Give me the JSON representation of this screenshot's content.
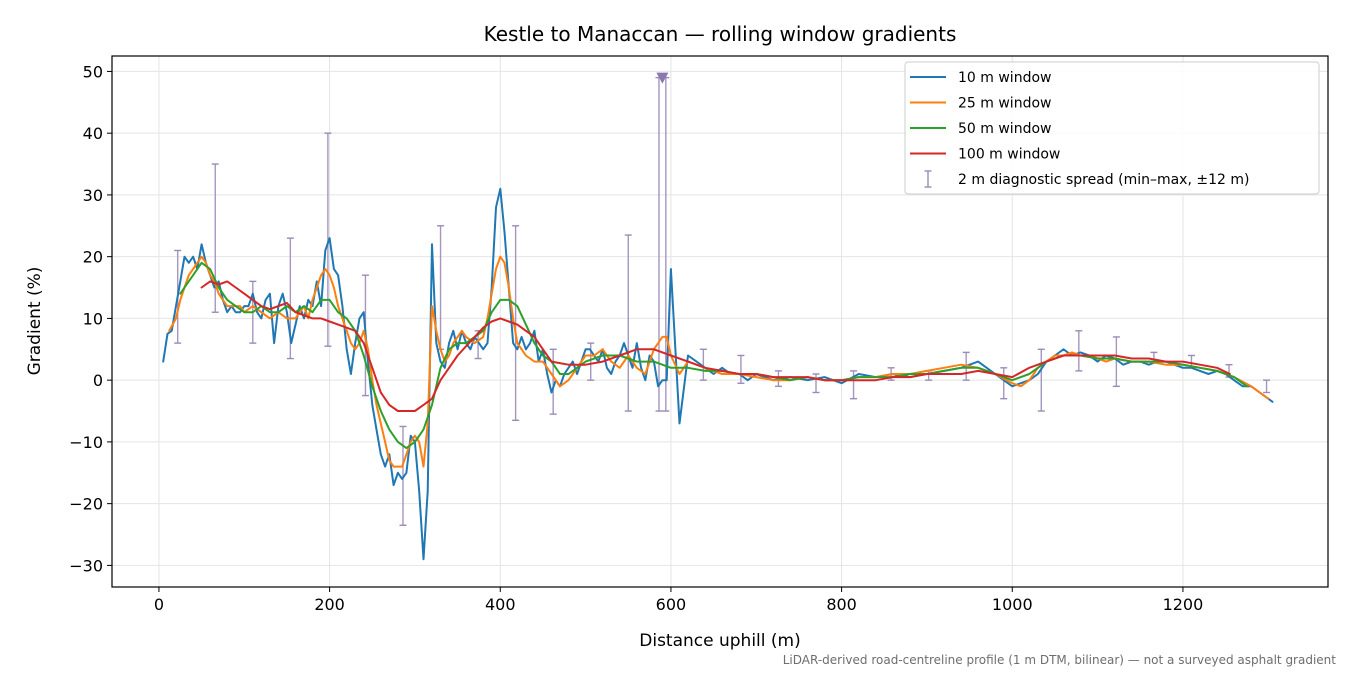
{
  "chart_data": {
    "type": "line",
    "title": "Kestle to Manaccan — rolling window gradients",
    "xlabel": "Distance uphill (m)",
    "ylabel": "Gradient (%)",
    "footnote": "LiDAR-derived road-centreline profile (1 m DTM, bilinear) — not a surveyed asphalt gradient",
    "xlim": [
      -55,
      1370
    ],
    "ylim": [
      -33.5,
      52.5
    ],
    "xticks": [
      0,
      200,
      400,
      600,
      800,
      1000,
      1200
    ],
    "yticks": [
      -30,
      -20,
      -10,
      0,
      10,
      20,
      30,
      40,
      50
    ],
    "grid": true,
    "legend": {
      "position": "top-right"
    },
    "series": [
      {
        "name": "10 m window",
        "color": "#1f77b4",
        "x": [
          5,
          10,
          15,
          20,
          25,
          30,
          35,
          40,
          45,
          50,
          55,
          60,
          65,
          70,
          75,
          80,
          85,
          90,
          95,
          100,
          105,
          110,
          115,
          120,
          125,
          130,
          135,
          140,
          145,
          150,
          155,
          160,
          165,
          170,
          175,
          180,
          185,
          190,
          195,
          200,
          205,
          210,
          215,
          220,
          225,
          230,
          235,
          240,
          245,
          250,
          255,
          260,
          265,
          270,
          275,
          280,
          285,
          290,
          295,
          300,
          305,
          310,
          315,
          320,
          325,
          330,
          335,
          340,
          345,
          350,
          355,
          360,
          365,
          370,
          375,
          380,
          385,
          390,
          395,
          400,
          405,
          410,
          415,
          420,
          425,
          430,
          435,
          440,
          445,
          450,
          455,
          460,
          465,
          470,
          475,
          480,
          485,
          490,
          495,
          500,
          505,
          510,
          515,
          520,
          525,
          530,
          535,
          540,
          545,
          550,
          555,
          560,
          565,
          570,
          575,
          580,
          585,
          590,
          595,
          600,
          610,
          620,
          630,
          640,
          650,
          660,
          670,
          680,
          690,
          700,
          720,
          740,
          760,
          780,
          800,
          820,
          840,
          860,
          880,
          900,
          920,
          940,
          960,
          980,
          1000,
          1010,
          1020,
          1030,
          1040,
          1050,
          1060,
          1070,
          1080,
          1090,
          1100,
          1110,
          1120,
          1130,
          1140,
          1150,
          1160,
          1170,
          1180,
          1190,
          1200,
          1210,
          1220,
          1230,
          1240,
          1250,
          1260,
          1270,
          1280,
          1290,
          1300,
          1305
        ],
        "y": [
          3,
          7.5,
          8,
          12,
          16,
          20,
          19,
          20,
          18,
          22,
          19,
          17,
          15,
          16,
          13,
          11,
          12,
          11,
          11,
          12,
          12,
          14,
          11,
          10,
          13,
          14,
          6,
          12,
          14,
          11,
          6,
          9,
          12,
          10,
          13,
          12,
          16,
          12,
          21,
          23,
          18,
          17,
          12,
          5,
          1,
          6,
          10,
          11,
          3,
          -4,
          -8,
          -12,
          -14,
          -12,
          -17,
          -15,
          -16,
          -15,
          -9,
          -10,
          -18,
          -29,
          -18,
          22,
          6,
          3,
          2,
          6,
          8,
          5,
          8,
          6,
          5,
          7,
          6,
          5,
          6,
          15,
          28,
          31,
          24,
          15,
          6,
          5,
          7,
          5,
          6,
          8,
          3,
          5,
          1,
          -2,
          0,
          -1,
          1,
          2,
          3,
          1,
          3,
          5,
          5,
          4,
          3,
          5,
          2,
          1,
          3,
          4,
          6,
          4,
          2,
          6,
          2,
          0,
          4,
          3,
          -1,
          0,
          0,
          18,
          -7,
          4,
          3,
          2,
          1,
          2,
          1,
          1,
          0,
          1,
          0,
          0.5,
          0,
          0.5,
          -0.5,
          1,
          0.5,
          1,
          0.5,
          1,
          1.5,
          2,
          3,
          1,
          -1,
          -0.5,
          0,
          1,
          3,
          4,
          5,
          4,
          4.5,
          4,
          3,
          4,
          3.5,
          2.5,
          3,
          3,
          2.5,
          3,
          3,
          2.5,
          2,
          2,
          1.5,
          1,
          1.5,
          1,
          0,
          -1,
          -1,
          -2,
          -3,
          -3.5
        ]
      },
      {
        "name": "25 m window",
        "color": "#ff7f0e",
        "x": [
          12,
          20,
          25,
          30,
          35,
          40,
          45,
          50,
          55,
          60,
          65,
          70,
          75,
          80,
          85,
          90,
          95,
          100,
          110,
          120,
          130,
          140,
          150,
          160,
          170,
          175,
          180,
          185,
          190,
          195,
          200,
          205,
          210,
          215,
          220,
          225,
          230,
          235,
          240,
          245,
          250,
          255,
          260,
          265,
          270,
          275,
          280,
          285,
          290,
          295,
          300,
          305,
          310,
          315,
          320,
          325,
          330,
          335,
          340,
          345,
          350,
          355,
          360,
          370,
          380,
          385,
          390,
          395,
          400,
          405,
          410,
          415,
          420,
          430,
          440,
          450,
          460,
          470,
          480,
          490,
          500,
          510,
          520,
          530,
          540,
          550,
          560,
          570,
          580,
          590,
          595,
          600,
          610,
          620,
          640,
          660,
          680,
          700,
          720,
          740,
          760,
          780,
          800,
          820,
          840,
          860,
          880,
          900,
          920,
          940,
          960,
          980,
          1000,
          1010,
          1020,
          1030,
          1040,
          1050,
          1060,
          1070,
          1080,
          1090,
          1100,
          1110,
          1120,
          1140,
          1160,
          1180,
          1200,
          1220,
          1240,
          1260,
          1280,
          1290,
          1300
        ],
        "y": [
          8,
          10,
          13,
          15,
          17,
          18,
          19,
          20,
          19,
          17,
          16,
          14,
          13,
          12,
          12,
          12,
          12,
          11,
          12,
          11,
          10,
          11,
          10,
          10,
          12,
          10,
          13,
          15,
          17,
          18,
          17,
          15,
          12,
          10,
          8,
          6,
          5,
          6,
          8,
          5,
          0,
          -4,
          -7,
          -10,
          -13,
          -14,
          -14,
          -14,
          -12,
          -10,
          -9,
          -10,
          -14,
          -7,
          12,
          8,
          5,
          3,
          4,
          6,
          7,
          8,
          7,
          6,
          7,
          10,
          14,
          18,
          20,
          19,
          15,
          10,
          6,
          4,
          3,
          3,
          1,
          -1,
          0,
          2,
          4,
          4,
          5,
          3,
          2,
          4,
          2,
          1,
          5,
          7,
          7,
          4,
          1,
          3,
          2,
          1,
          1,
          0.5,
          0,
          0,
          0.5,
          0,
          0,
          0.5,
          0.5,
          1,
          1,
          1.5,
          2,
          2.5,
          2,
          1,
          -0.5,
          -1,
          0,
          2,
          3,
          4,
          4,
          4.5,
          4,
          4,
          3.5,
          3,
          3.5,
          3,
          3,
          2.5,
          2.5,
          2,
          1.5,
          0.5,
          -1,
          -2,
          -3
        ]
      },
      {
        "name": "50 m window",
        "color": "#2ca02c",
        "x": [
          25,
          30,
          40,
          50,
          60,
          70,
          80,
          90,
          100,
          110,
          120,
          130,
          140,
          150,
          160,
          170,
          180,
          190,
          200,
          210,
          220,
          230,
          240,
          250,
          260,
          270,
          280,
          290,
          300,
          310,
          320,
          330,
          340,
          350,
          360,
          370,
          380,
          390,
          400,
          410,
          420,
          430,
          440,
          450,
          460,
          470,
          480,
          490,
          500,
          520,
          540,
          560,
          580,
          600,
          620,
          640,
          660,
          680,
          700,
          720,
          740,
          760,
          780,
          800,
          820,
          840,
          860,
          880,
          900,
          920,
          940,
          960,
          980,
          1000,
          1020,
          1040,
          1060,
          1080,
          1100,
          1120,
          1140,
          1160,
          1180,
          1200,
          1220,
          1240,
          1260,
          1275
        ],
        "y": [
          14,
          15,
          17,
          19,
          18,
          15,
          13,
          12,
          11,
          11,
          12,
          11,
          11,
          12,
          11,
          12,
          11,
          13,
          13,
          11,
          10,
          8,
          4,
          -1,
          -5,
          -8,
          -10,
          -11,
          -10,
          -8,
          -4,
          2,
          5,
          6,
          6,
          7,
          8,
          11,
          13,
          13,
          12,
          9,
          6,
          4,
          3,
          1,
          1,
          2,
          3,
          4,
          4,
          3,
          3,
          2,
          2,
          1.5,
          1.5,
          1,
          1,
          0.5,
          0,
          0.5,
          0,
          0,
          0.5,
          0.5,
          0.5,
          1,
          1,
          1.5,
          2,
          2,
          1,
          0,
          1,
          3,
          4,
          4,
          3.5,
          3.5,
          3,
          3,
          3,
          2.5,
          2,
          1.5,
          0.5,
          -1
        ]
      },
      {
        "name": "100 m window",
        "color": "#d62728",
        "x": [
          50,
          60,
          70,
          80,
          90,
          100,
          110,
          120,
          130,
          140,
          150,
          160,
          170,
          180,
          190,
          200,
          210,
          220,
          230,
          240,
          250,
          260,
          270,
          280,
          290,
          300,
          310,
          320,
          330,
          340,
          350,
          360,
          370,
          380,
          390,
          400,
          410,
          420,
          430,
          440,
          450,
          460,
          480,
          500,
          520,
          540,
          560,
          580,
          600,
          620,
          640,
          660,
          680,
          700,
          720,
          740,
          760,
          780,
          800,
          820,
          840,
          860,
          880,
          900,
          920,
          940,
          960,
          980,
          1000,
          1020,
          1040,
          1060,
          1080,
          1100,
          1120,
          1140,
          1160,
          1180,
          1200,
          1220,
          1240,
          1255
        ],
        "y": [
          15,
          16,
          15.5,
          16,
          15,
          14,
          13,
          12,
          11.5,
          12,
          12.5,
          11,
          10.5,
          10,
          10,
          9.5,
          9,
          8.5,
          8,
          6,
          2,
          -2,
          -4,
          -5,
          -5,
          -5,
          -4,
          -3,
          0,
          2,
          4,
          5.5,
          7,
          8.5,
          9.5,
          10,
          9.5,
          9,
          8,
          7,
          5,
          3,
          2.5,
          2.5,
          3,
          4,
          5,
          5,
          4,
          3,
          2,
          1.5,
          1,
          1,
          0.5,
          0.5,
          0.5,
          0,
          0,
          0,
          0,
          0.5,
          0.5,
          1,
          1,
          1,
          1.5,
          1,
          0.5,
          2,
          3,
          4,
          4,
          4,
          4,
          3.5,
          3.5,
          3,
          3,
          2.5,
          2,
          1
        ]
      }
    ],
    "diagnostic_spread": {
      "name": "2 m diagnostic spread (min–max, ±12 m)",
      "color": "#9b8ab8",
      "points": [
        {
          "x": 22,
          "min": 6,
          "max": 21
        },
        {
          "x": 66,
          "min": 11,
          "max": 35
        },
        {
          "x": 110,
          "min": 6,
          "max": 16
        },
        {
          "x": 154,
          "min": 3.5,
          "max": 23
        },
        {
          "x": 198,
          "min": 5.5,
          "max": 40
        },
        {
          "x": 242,
          "min": -2.5,
          "max": 17
        },
        {
          "x": 286,
          "min": -23.5,
          "max": -7.5
        },
        {
          "x": 330,
          "min": 5,
          "max": 25
        },
        {
          "x": 374,
          "min": 3.5,
          "max": 8
        },
        {
          "x": 418,
          "min": -6.5,
          "max": 25
        },
        {
          "x": 462,
          "min": -5.5,
          "max": 5
        },
        {
          "x": 506,
          "min": 0,
          "max": 6
        },
        {
          "x": 550,
          "min": -5,
          "max": 23.5
        },
        {
          "x": 586,
          "min": -5,
          "max": 49
        },
        {
          "x": 594,
          "min": -5,
          "max": 49
        },
        {
          "x": 638,
          "min": 0,
          "max": 5
        },
        {
          "x": 682,
          "min": -0.5,
          "max": 4
        },
        {
          "x": 726,
          "min": -1,
          "max": 1.5
        },
        {
          "x": 770,
          "min": -2,
          "max": 1
        },
        {
          "x": 814,
          "min": -3,
          "max": 1.5
        },
        {
          "x": 858,
          "min": 0,
          "max": 2
        },
        {
          "x": 902,
          "min": 0,
          "max": 1.5
        },
        {
          "x": 946,
          "min": 0,
          "max": 4.5
        },
        {
          "x": 990,
          "min": -3,
          "max": 2
        },
        {
          "x": 1034,
          "min": -5,
          "max": 5
        },
        {
          "x": 1078,
          "min": 1.5,
          "max": 8
        },
        {
          "x": 1122,
          "min": -1,
          "max": 7
        },
        {
          "x": 1166,
          "min": 3,
          "max": 4.5
        },
        {
          "x": 1210,
          "min": 2,
          "max": 4
        },
        {
          "x": 1254,
          "min": 0.5,
          "max": 2.5
        },
        {
          "x": 1298,
          "min": -2,
          "max": 0
        }
      ],
      "clip_marker": {
        "x": 590,
        "y": 49
      }
    }
  }
}
